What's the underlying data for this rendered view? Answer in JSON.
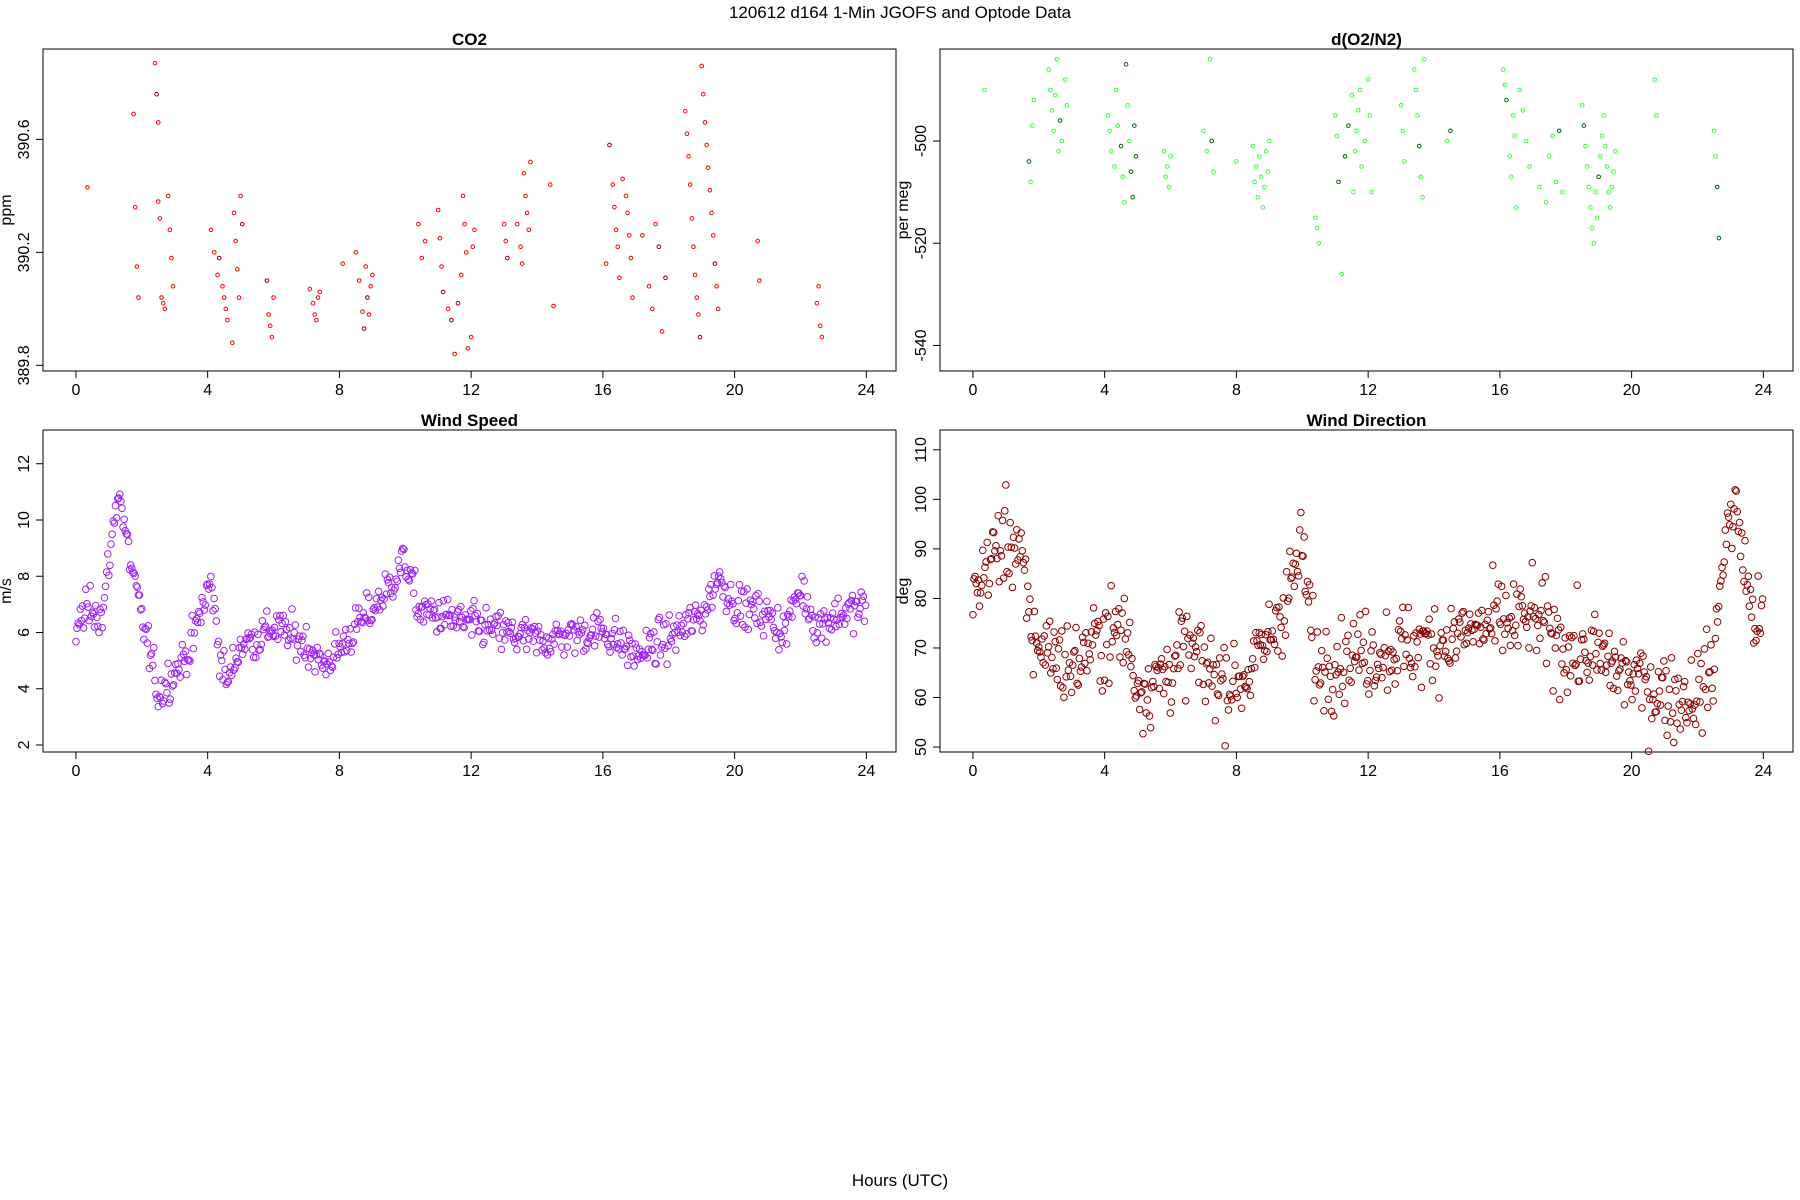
{
  "figure": {
    "title": "120612   d164   1-Min  JGOFS and Optode Data",
    "xlabel": "Hours (UTC)"
  },
  "chart_data": [
    {
      "id": "co2",
      "type": "scatter",
      "title": "CO2",
      "ylabel": "ppm",
      "xlim": [
        -1,
        24.9
      ],
      "ylim": [
        389.78,
        390.92
      ],
      "xticks": [
        0,
        4,
        8,
        12,
        16,
        20,
        24
      ],
      "yticks": [
        389.8,
        390.2,
        390.6
      ],
      "ytick_labels": [
        "389.8",
        "390.2",
        "390.6"
      ],
      "color": "#ff0000",
      "highlight_color": "#8b0000",
      "marker_size": "small",
      "series": [
        {
          "x": [
            0.35,
            1.75,
            1.8,
            1.85,
            1.9,
            2.4,
            2.45,
            2.5,
            2.5,
            2.55,
            2.6,
            2.65,
            2.7,
            2.8,
            2.85,
            2.9,
            2.95,
            4.1,
            4.2,
            4.3,
            4.35,
            4.45,
            4.5,
            4.55,
            4.6,
            4.75,
            4.8,
            4.85,
            4.9,
            4.95,
            5.0,
            5.05,
            5.8,
            5.85,
            5.9,
            5.95,
            6.0,
            7.1,
            7.2,
            7.25,
            7.3,
            7.35,
            7.4,
            8.1,
            8.5,
            8.6,
            8.7,
            8.75,
            8.8,
            8.85,
            8.9,
            8.95,
            9.0,
            10.4,
            10.5,
            10.6,
            11.0,
            11.05,
            11.1,
            11.15,
            11.3,
            11.4,
            11.5,
            11.6,
            11.7,
            11.75,
            11.8,
            11.85,
            11.9,
            12.0,
            12.05,
            12.1,
            13.0,
            13.05,
            13.1,
            13.4,
            13.5,
            13.55,
            13.6,
            13.65,
            13.7,
            13.75,
            13.8,
            14.4,
            14.5,
            16.1,
            16.2,
            16.3,
            16.35,
            16.4,
            16.45,
            16.5,
            16.6,
            16.7,
            16.75,
            16.8,
            16.85,
            16.9,
            17.2,
            17.4,
            17.5,
            17.6,
            17.7,
            17.8,
            17.9,
            18.5,
            18.55,
            18.6,
            18.65,
            18.7,
            18.75,
            18.8,
            18.85,
            18.9,
            18.95,
            19.0,
            19.05,
            19.1,
            19.15,
            19.2,
            19.25,
            19.3,
            19.35,
            19.4,
            19.45,
            19.5,
            20.7,
            20.75,
            22.5,
            22.55,
            22.6,
            22.65
          ],
          "y": [
            390.43,
            390.69,
            390.36,
            390.15,
            390.04,
            390.87,
            390.76,
            390.66,
            390.38,
            390.32,
            390.04,
            390.02,
            390.0,
            390.4,
            390.28,
            390.18,
            390.08,
            390.28,
            390.2,
            390.12,
            390.18,
            390.08,
            390.04,
            390.0,
            389.96,
            389.88,
            390.34,
            390.24,
            390.14,
            390.04,
            390.4,
            390.3,
            390.1,
            389.98,
            389.94,
            389.9,
            390.04,
            390.07,
            390.02,
            389.98,
            389.96,
            390.04,
            390.06,
            390.16,
            390.2,
            390.1,
            389.99,
            389.93,
            390.15,
            390.04,
            389.98,
            390.08,
            390.12,
            390.3,
            390.18,
            390.24,
            390.35,
            390.25,
            390.15,
            390.06,
            390.0,
            389.96,
            389.84,
            390.02,
            390.12,
            390.4,
            390.3,
            390.2,
            389.86,
            389.9,
            390.22,
            390.28,
            390.3,
            390.24,
            390.18,
            390.3,
            390.22,
            390.16,
            390.48,
            390.4,
            390.34,
            390.28,
            390.52,
            390.44,
            390.01,
            390.16,
            390.58,
            390.44,
            390.36,
            390.28,
            390.22,
            390.11,
            390.46,
            390.4,
            390.34,
            390.26,
            390.18,
            390.04,
            390.26,
            390.08,
            390.0,
            390.3,
            390.22,
            389.92,
            390.11,
            390.7,
            390.62,
            390.54,
            390.44,
            390.32,
            390.22,
            390.12,
            390.04,
            389.98,
            389.9,
            390.86,
            390.76,
            390.66,
            390.58,
            390.5,
            390.42,
            390.34,
            390.26,
            390.16,
            390.08,
            390.0,
            390.24,
            390.1,
            390.02,
            390.08,
            389.94,
            389.9
          ]
        }
      ]
    },
    {
      "id": "o2n2",
      "type": "scatter",
      "title": "d(O2/N2)",
      "ylabel": "per meg",
      "xlim": [
        -1,
        24.9
      ],
      "ylim": [
        -545,
        -482
      ],
      "xticks": [
        0,
        4,
        8,
        12,
        16,
        20,
        24
      ],
      "yticks": [
        -540,
        -520,
        -500
      ],
      "ytick_labels": [
        "-540",
        "-520",
        "-500"
      ],
      "color": "#33ff33",
      "highlight_color": "#006400",
      "marker_size": "small",
      "series": [
        {
          "x": [
            0.35,
            1.7,
            1.75,
            1.8,
            1.85,
            2.3,
            2.35,
            2.4,
            2.45,
            2.5,
            2.55,
            2.6,
            2.65,
            2.7,
            2.8,
            2.85,
            4.1,
            4.15,
            4.2,
            4.3,
            4.35,
            4.4,
            4.5,
            4.55,
            4.6,
            4.65,
            4.7,
            4.75,
            4.8,
            4.85,
            4.9,
            4.95,
            5.8,
            5.85,
            5.9,
            5.95,
            6.0,
            7.0,
            7.1,
            7.2,
            7.25,
            7.3,
            8.0,
            8.5,
            8.55,
            8.6,
            8.65,
            8.7,
            8.75,
            8.8,
            8.85,
            8.9,
            8.95,
            9.0,
            10.4,
            10.45,
            10.5,
            11.0,
            11.05,
            11.1,
            11.2,
            11.3,
            11.4,
            11.5,
            11.55,
            11.6,
            11.65,
            11.7,
            11.75,
            11.8,
            11.9,
            12.0,
            12.05,
            12.1,
            13.0,
            13.05,
            13.1,
            13.4,
            13.45,
            13.5,
            13.55,
            13.6,
            13.65,
            13.7,
            14.4,
            14.5,
            16.1,
            16.15,
            16.2,
            16.3,
            16.35,
            16.4,
            16.45,
            16.5,
            16.6,
            16.7,
            16.8,
            16.9,
            17.2,
            17.4,
            17.5,
            17.6,
            17.7,
            17.8,
            17.9,
            18.5,
            18.55,
            18.6,
            18.65,
            18.7,
            18.75,
            18.8,
            18.85,
            18.9,
            18.95,
            19.0,
            19.05,
            19.1,
            19.15,
            19.2,
            19.25,
            19.3,
            19.35,
            19.4,
            19.45,
            19.5,
            20.7,
            20.75,
            22.5,
            22.55,
            22.6,
            22.65
          ],
          "y": [
            -490,
            -504,
            -508,
            -497,
            -492,
            -486,
            -490,
            -494,
            -498,
            -491,
            -484,
            -502,
            -496,
            -500,
            -488,
            -493,
            -495,
            -498,
            -502,
            -505,
            -490,
            -497,
            -501,
            -507,
            -512,
            -485,
            -493,
            -500,
            -506,
            -511,
            -497,
            -503,
            -502,
            -507,
            -505,
            -509,
            -503,
            -498,
            -502,
            -484,
            -500,
            -506,
            -504,
            -501,
            -508,
            -505,
            -511,
            -503,
            -507,
            -513,
            -509,
            -502,
            -506,
            -500,
            -515,
            -517,
            -520,
            -495,
            -499,
            -508,
            -526,
            -503,
            -497,
            -491,
            -510,
            -502,
            -498,
            -494,
            -490,
            -505,
            -500,
            -488,
            -495,
            -510,
            -493,
            -498,
            -504,
            -486,
            -490,
            -495,
            -501,
            -507,
            -511,
            -484,
            -500,
            -498,
            -486,
            -489,
            -492,
            -503,
            -507,
            -495,
            -499,
            -513,
            -490,
            -494,
            -500,
            -505,
            -509,
            -512,
            -503,
            -499,
            -508,
            -498,
            -510,
            -493,
            -497,
            -501,
            -505,
            -509,
            -513,
            -517,
            -520,
            -510,
            -515,
            -507,
            -503,
            -499,
            -495,
            -501,
            -505,
            -510,
            -513,
            -509,
            -506,
            -502,
            -488,
            -495,
            -498,
            -503,
            -509,
            -519
          ]
        }
      ]
    },
    {
      "id": "wind-speed",
      "type": "scatter",
      "title": "Wind Speed",
      "ylabel": "m/s",
      "xlim": [
        -1,
        24.9
      ],
      "ylim": [
        1.75,
        13.2
      ],
      "xticks": [
        0,
        4,
        8,
        12,
        16,
        20,
        24
      ],
      "yticks": [
        2,
        4,
        6,
        8,
        10,
        12
      ],
      "ytick_labels": [
        "2",
        "4",
        "6",
        "8",
        "10",
        "12"
      ],
      "color": "#a020f0",
      "marker_size": "large",
      "series": [
        {
          "name": "",
          "x_start": 0,
          "x_step": 0.0333,
          "generator": "profile",
          "profile_hours": [
            0,
            0.5,
            0.8,
            1.0,
            1.3,
            1.5,
            1.9,
            2.2,
            2.5,
            3.0,
            3.5,
            3.8,
            4.1,
            4.4,
            4.6,
            5.0,
            5.5,
            6.0,
            7.0,
            7.5,
            8.0,
            8.5,
            9.0,
            9.5,
            10.0,
            10.4,
            11.0,
            12.0,
            13.0,
            14.0,
            15.0,
            16.0,
            17.0,
            18.0,
            19.0,
            19.5,
            20.0,
            21.0,
            21.5,
            22.0,
            22.5,
            23.0,
            24.0
          ],
          "profile_values": [
            6.2,
            7.0,
            6.5,
            8.5,
            11.2,
            9.5,
            7.0,
            5.5,
            3.8,
            4.6,
            5.5,
            6.8,
            7.8,
            5.0,
            4.2,
            5.6,
            5.8,
            6.2,
            5.6,
            4.8,
            5.4,
            6.2,
            6.8,
            7.6,
            8.6,
            6.8,
            6.6,
            6.3,
            6.0,
            5.7,
            5.9,
            6.1,
            5.2,
            5.8,
            6.6,
            8.0,
            7.0,
            6.6,
            6.0,
            7.6,
            6.2,
            6.6,
            6.9
          ],
          "noise": 0.5
        }
      ]
    },
    {
      "id": "wind-direction",
      "type": "scatter",
      "title": "Wind Direction",
      "ylabel": "deg",
      "xlim": [
        -1,
        24.9
      ],
      "ylim": [
        49,
        114
      ],
      "xticks": [
        0,
        4,
        8,
        12,
        16,
        20,
        24
      ],
      "yticks": [
        50,
        60,
        70,
        80,
        90,
        100,
        110
      ],
      "ytick_labels": [
        "50",
        "60",
        "70",
        "80",
        "90",
        "100",
        "110"
      ],
      "color": "#8b0000",
      "marker_size": "large",
      "series": [
        {
          "name": "",
          "x_start": 0,
          "x_step": 0.0333,
          "generator": "profile",
          "profile_hours": [
            0,
            0.5,
            1.0,
            1.4,
            1.8,
            2.3,
            3.0,
            3.5,
            4.0,
            4.6,
            5.0,
            5.5,
            6.0,
            6.5,
            7.0,
            7.5,
            8.0,
            8.5,
            9.0,
            9.5,
            10.0,
            10.4,
            11.0,
            12.0,
            13.0,
            14.0,
            15.0,
            16.0,
            17.0,
            18.0,
            19.0,
            20.0,
            20.5,
            21.0,
            21.5,
            22.0,
            22.5,
            22.8,
            23.2,
            23.6,
            24.0
          ],
          "profile_values": [
            80,
            88,
            92,
            90,
            72,
            70,
            66,
            70,
            72,
            74,
            62,
            63,
            66,
            70,
            66,
            64,
            63,
            66,
            72,
            80,
            90,
            66,
            68,
            69,
            70,
            71,
            73,
            75,
            76,
            70,
            68,
            64,
            62,
            61,
            60,
            61,
            66,
            92,
            98,
            78,
            74
          ],
          "noise": 6
        }
      ]
    }
  ]
}
